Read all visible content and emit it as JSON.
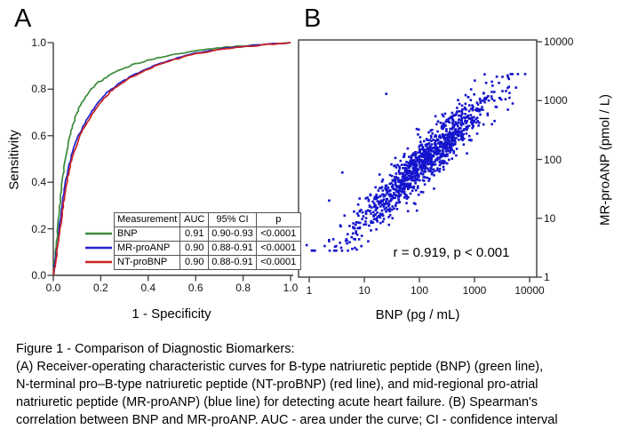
{
  "panels": {
    "a": {
      "letter": "A",
      "xlabel": "1 - Specificity",
      "ylabel": "Sensitivity",
      "x_tick_labels": [
        "0.0",
        "0.2",
        "0.4",
        "0.6",
        "0.8",
        "1.0"
      ],
      "y_tick_labels": [
        "0.0",
        "0.2",
        "0.4",
        "0.6",
        "0.8",
        "1.0"
      ]
    },
    "b": {
      "letter": "B",
      "xlabel": "BNP (pg / mL)",
      "ylabel": "MR-proANP (pmol / L)",
      "x_tick_labels": [
        "1",
        "10",
        "100",
        "1000",
        "10000"
      ],
      "y_tick_labels": [
        "1",
        "10",
        "100",
        "1000",
        "10000"
      ],
      "annotation": "r = 0.919,  p < 0.001"
    }
  },
  "table": {
    "headers": [
      "Measurement",
      "AUC",
      "95% CI",
      "p"
    ],
    "rows": [
      {
        "label": "BNP",
        "auc": "0.91",
        "ci": "0.90-0.93",
        "p": "<0.0001",
        "color": "#3a8a3a"
      },
      {
        "label": "MR-proANP",
        "auc": "0.90",
        "ci": "0.88-0.91",
        "p": "<0.0001",
        "color": "#2222cc"
      },
      {
        "label": "NT-proBNP",
        "auc": "0.90",
        "ci": "0.88-0.91",
        "p": "<0.0001",
        "color": "#cc2222"
      }
    ]
  },
  "caption_lines": [
    "Figure 1 - Comparison of Diagnostic Biomarkers:",
    "(A) Receiver-operating characteristic curves for B-type natriuretic peptide (BNP) (green line),",
    "N-terminal pro–B-type natriuretic peptide (NT-proBNP) (red line), and mid-regional pro-atrial",
    "natriuretic peptide (MR-proANP) (blue line) for detecting acute heart failure. (B) Spearman's",
    "correlation between BNP and MR-proANP. AUC - area under the curve; CI - confidence interval"
  ],
  "colors": {
    "axis": "#3c3c3c",
    "scatter_point": "#1414cc",
    "table_border": "#555555"
  },
  "chart_data": [
    {
      "type": "line",
      "title": "ROC curves for detecting acute heart failure",
      "xlabel": "1 - Specificity",
      "ylabel": "Sensitivity",
      "xlim": [
        0,
        1
      ],
      "ylim": [
        0,
        1
      ],
      "x_ticks": [
        0,
        0.2,
        0.4,
        0.6,
        0.8,
        1.0
      ],
      "y_ticks": [
        0,
        0.2,
        0.4,
        0.6,
        0.8,
        1.0
      ],
      "grid": false,
      "legend_position": "inset-table-lower-right",
      "jitter_seed": 3,
      "jitter_amplitude": 1.2,
      "subdivisions": 4,
      "series": [
        {
          "name": "BNP",
          "color": "#3a8a3a",
          "auc": 0.91,
          "ci": "0.90-0.93",
          "p": "<0.0001",
          "points": [
            [
              0,
              0
            ],
            [
              0.004,
              0.04
            ],
            [
              0.008,
              0.08
            ],
            [
              0.013,
              0.135
            ],
            [
              0.018,
              0.19
            ],
            [
              0.024,
              0.26
            ],
            [
              0.03,
              0.33
            ],
            [
              0.038,
              0.41
            ],
            [
              0.048,
              0.48
            ],
            [
              0.06,
              0.55
            ],
            [
              0.072,
              0.61
            ],
            [
              0.085,
              0.655
            ],
            [
              0.1,
              0.7
            ],
            [
              0.115,
              0.735
            ],
            [
              0.135,
              0.765
            ],
            [
              0.16,
              0.8
            ],
            [
              0.185,
              0.825
            ],
            [
              0.215,
              0.847
            ],
            [
              0.25,
              0.868
            ],
            [
              0.29,
              0.887
            ],
            [
              0.335,
              0.905
            ],
            [
              0.385,
              0.92
            ],
            [
              0.44,
              0.935
            ],
            [
              0.5,
              0.948
            ],
            [
              0.57,
              0.96
            ],
            [
              0.65,
              0.972
            ],
            [
              0.73,
              0.98
            ],
            [
              0.82,
              0.988
            ],
            [
              0.91,
              0.994
            ],
            [
              1,
              1
            ]
          ]
        },
        {
          "name": "MR-proANP",
          "color": "#2222cc",
          "auc": 0.9,
          "ci": "0.88-0.91",
          "p": "<0.0001",
          "points": [
            [
              0,
              0
            ],
            [
              0.005,
              0.035
            ],
            [
              0.01,
              0.07
            ],
            [
              0.016,
              0.12
            ],
            [
              0.022,
              0.17
            ],
            [
              0.029,
              0.23
            ],
            [
              0.037,
              0.3
            ],
            [
              0.046,
              0.37
            ],
            [
              0.057,
              0.43
            ],
            [
              0.07,
              0.49
            ],
            [
              0.085,
              0.545
            ],
            [
              0.1,
              0.585
            ],
            [
              0.12,
              0.63
            ],
            [
              0.145,
              0.675
            ],
            [
              0.17,
              0.715
            ],
            [
              0.2,
              0.757
            ],
            [
              0.235,
              0.793
            ],
            [
              0.275,
              0.823
            ],
            [
              0.32,
              0.852
            ],
            [
              0.37,
              0.877
            ],
            [
              0.425,
              0.9
            ],
            [
              0.49,
              0.925
            ],
            [
              0.56,
              0.945
            ],
            [
              0.64,
              0.962
            ],
            [
              0.72,
              0.975
            ],
            [
              0.81,
              0.985
            ],
            [
              0.9,
              0.993
            ],
            [
              1,
              1
            ]
          ]
        },
        {
          "name": "NT-proBNP",
          "color": "#cc2222",
          "auc": 0.9,
          "ci": "0.88-0.91",
          "p": "<0.0001",
          "points": [
            [
              0,
              0
            ],
            [
              0.006,
              0.03
            ],
            [
              0.012,
              0.065
            ],
            [
              0.018,
              0.115
            ],
            [
              0.025,
              0.165
            ],
            [
              0.032,
              0.225
            ],
            [
              0.04,
              0.295
            ],
            [
              0.05,
              0.36
            ],
            [
              0.061,
              0.42
            ],
            [
              0.074,
              0.48
            ],
            [
              0.089,
              0.535
            ],
            [
              0.105,
              0.578
            ],
            [
              0.125,
              0.625
            ],
            [
              0.15,
              0.67
            ],
            [
              0.175,
              0.71
            ],
            [
              0.205,
              0.75
            ],
            [
              0.24,
              0.788
            ],
            [
              0.28,
              0.82
            ],
            [
              0.325,
              0.849
            ],
            [
              0.375,
              0.874
            ],
            [
              0.43,
              0.898
            ],
            [
              0.495,
              0.922
            ],
            [
              0.565,
              0.943
            ],
            [
              0.645,
              0.96
            ],
            [
              0.725,
              0.974
            ],
            [
              0.815,
              0.984
            ],
            [
              0.905,
              0.992
            ],
            [
              1,
              1
            ]
          ]
        }
      ]
    },
    {
      "type": "scatter",
      "title": "Spearman's correlation between BNP and MR-proANP",
      "xlabel": "BNP (pg / mL)",
      "ylabel": "MR-proANP (pmol / L)",
      "xscale": "log",
      "yscale": "log",
      "xlim": [
        1,
        10000
      ],
      "ylim": [
        1,
        10000
      ],
      "x_ticks": [
        1,
        10,
        100,
        1000,
        10000
      ],
      "y_ticks": [
        1,
        10,
        100,
        1000,
        10000
      ],
      "grid": false,
      "annotation": "r = 0.919,  p < 0.001",
      "correlation_r": 0.919,
      "p_value": "<0.001",
      "point_color": "#1414cc",
      "generator": {
        "seed": 11,
        "n": 1150,
        "logx_mean": 2.05,
        "logx_sd": 0.63,
        "slope": 0.89,
        "intercept": 0.11,
        "noise_sd": 0.2,
        "logx_clip": [
          0.05,
          3.92
        ],
        "logy_clip": [
          0.45,
          3.45
        ]
      },
      "outlier_points": [
        [
          0.9,
          3.5
        ],
        [
          25,
          1300
        ],
        [
          4,
          60
        ],
        [
          2.3,
          20
        ]
      ]
    }
  ]
}
